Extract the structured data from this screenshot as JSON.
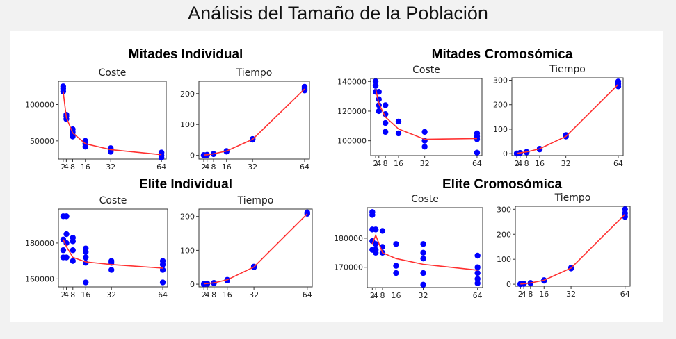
{
  "title": "Análisis del Tamaño de la Población",
  "colors": {
    "line": "#ff3030",
    "point": "#0000ff"
  },
  "groups": [
    {
      "title": "Mitades Individual"
    },
    {
      "title": "Mitades Cromosómica"
    },
    {
      "title": "Elite Individual"
    },
    {
      "title": "Elite Cromosómica"
    }
  ],
  "chart_data": [
    {
      "type": "line",
      "group": 0,
      "title": "Coste",
      "x_ticks": [
        2,
        4,
        8,
        16,
        32,
        64
      ],
      "x_tick_labels": [
        "2",
        "4",
        "8",
        "16",
        "32",
        "64"
      ],
      "xlim": [
        -1,
        67
      ],
      "ylim": [
        25000,
        132000
      ],
      "y_ticks": [
        50000,
        100000
      ],
      "y_tick_labels": [
        "50000",
        "100000"
      ],
      "line": {
        "x": [
          2,
          4,
          8,
          16,
          32,
          64
        ],
        "y": [
          118000,
          82000,
          61000,
          46000,
          38000,
          31000
        ]
      },
      "points": [
        [
          2,
          125000
        ],
        [
          2,
          122000
        ],
        [
          2,
          118000
        ],
        [
          4,
          86000
        ],
        [
          4,
          84000
        ],
        [
          4,
          80000
        ],
        [
          8,
          66000
        ],
        [
          8,
          62000
        ],
        [
          8,
          58000
        ],
        [
          8,
          56000
        ],
        [
          16,
          50000
        ],
        [
          16,
          46000
        ],
        [
          16,
          42000
        ],
        [
          32,
          40000
        ],
        [
          32,
          37000
        ],
        [
          32,
          35000
        ],
        [
          64,
          34000
        ],
        [
          64,
          30000
        ],
        [
          64,
          27000
        ]
      ]
    },
    {
      "type": "line",
      "group": 0,
      "title": "Tiempo",
      "x_ticks": [
        2,
        4,
        8,
        16,
        32,
        64
      ],
      "x_tick_labels": [
        "2",
        "4",
        "8",
        "16",
        "32",
        "64"
      ],
      "xlim": [
        -1,
        67
      ],
      "ylim": [
        -12,
        240
      ],
      "y_ticks": [
        0,
        100,
        200
      ],
      "y_tick_labels": [
        "0",
        "100",
        "200"
      ],
      "line": {
        "x": [
          2,
          4,
          8,
          16,
          32,
          64
        ],
        "y": [
          1,
          2,
          5,
          14,
          52,
          215
        ]
      },
      "points": [
        [
          2,
          1
        ],
        [
          2,
          0
        ],
        [
          4,
          2
        ],
        [
          4,
          1
        ],
        [
          8,
          5
        ],
        [
          8,
          4
        ],
        [
          16,
          14
        ],
        [
          16,
          12
        ],
        [
          32,
          53
        ],
        [
          32,
          51
        ],
        [
          64,
          222
        ],
        [
          64,
          215
        ],
        [
          64,
          210
        ]
      ]
    },
    {
      "type": "line",
      "group": 1,
      "title": "Coste",
      "x_ticks": [
        2,
        4,
        8,
        16,
        32,
        64
      ],
      "x_tick_labels": [
        "2",
        "4",
        "8",
        "16",
        "32",
        "64"
      ],
      "xlim": [
        -1,
        67
      ],
      "ylim": [
        90000,
        142000
      ],
      "y_ticks": [
        100000,
        120000,
        140000
      ],
      "y_tick_labels": [
        "100000",
        "120000",
        "140000"
      ],
      "line": {
        "x": [
          2,
          4,
          8,
          16,
          32,
          64
        ],
        "y": [
          135000,
          125000,
          116000,
          108000,
          101000,
          101500
        ]
      },
      "points": [
        [
          2,
          140000
        ],
        [
          2,
          137000
        ],
        [
          2,
          133000
        ],
        [
          4,
          133000
        ],
        [
          4,
          128000
        ],
        [
          4,
          124000
        ],
        [
          4,
          120000
        ],
        [
          8,
          124000
        ],
        [
          8,
          118000
        ],
        [
          8,
          112000
        ],
        [
          8,
          106000
        ],
        [
          16,
          113000
        ],
        [
          16,
          105000
        ],
        [
          32,
          106000
        ],
        [
          32,
          100000
        ],
        [
          32,
          96000
        ],
        [
          64,
          105000
        ],
        [
          64,
          103000
        ],
        [
          64,
          101000
        ],
        [
          64,
          92000
        ]
      ]
    },
    {
      "type": "line",
      "group": 1,
      "title": "Tiempo",
      "x_ticks": [
        2,
        4,
        8,
        16,
        32,
        64
      ],
      "x_tick_labels": [
        "2",
        "4",
        "8",
        "16",
        "32",
        "64"
      ],
      "xlim": [
        -1,
        67
      ],
      "ylim": [
        -8,
        310
      ],
      "y_ticks": [
        0,
        100,
        200,
        300
      ],
      "y_tick_labels": [
        "0",
        "100",
        "200",
        "300"
      ],
      "line": {
        "x": [
          2,
          4,
          8,
          16,
          32,
          64
        ],
        "y": [
          1,
          3,
          7,
          20,
          70,
          283
        ]
      },
      "points": [
        [
          2,
          1
        ],
        [
          2,
          0
        ],
        [
          4,
          3
        ],
        [
          4,
          2
        ],
        [
          8,
          7
        ],
        [
          8,
          5
        ],
        [
          16,
          20
        ],
        [
          16,
          17
        ],
        [
          32,
          76
        ],
        [
          32,
          70
        ],
        [
          64,
          295
        ],
        [
          64,
          285
        ],
        [
          64,
          275
        ]
      ]
    },
    {
      "type": "line",
      "group": 2,
      "title": "Coste",
      "x_ticks": [
        2,
        4,
        8,
        16,
        32,
        64
      ],
      "x_tick_labels": [
        "2",
        "4",
        "8",
        "16",
        "32",
        "64"
      ],
      "xlim": [
        -1,
        67
      ],
      "ylim": [
        155500,
        199000
      ],
      "y_ticks": [
        160000,
        180000
      ],
      "y_tick_labels": [
        "160000",
        "180000"
      ],
      "line": {
        "x": [
          2,
          4,
          8,
          16,
          32,
          64
        ],
        "y": [
          182000,
          178000,
          172000,
          169500,
          168000,
          166000
        ]
      },
      "points": [
        [
          2,
          195000
        ],
        [
          2,
          182000
        ],
        [
          2,
          176000
        ],
        [
          2,
          172000
        ],
        [
          4,
          195000
        ],
        [
          4,
          185000
        ],
        [
          4,
          180000
        ],
        [
          4,
          172000
        ],
        [
          8,
          183000
        ],
        [
          8,
          181000
        ],
        [
          8,
          176000
        ],
        [
          8,
          170000
        ],
        [
          16,
          177000
        ],
        [
          16,
          175000
        ],
        [
          16,
          172000
        ],
        [
          16,
          169000
        ],
        [
          16,
          158000
        ],
        [
          32,
          170000
        ],
        [
          32,
          169000
        ],
        [
          32,
          165000
        ],
        [
          64,
          170000
        ],
        [
          64,
          168000
        ],
        [
          64,
          165000
        ],
        [
          64,
          158000
        ]
      ]
    },
    {
      "type": "line",
      "group": 2,
      "title": "Tiempo",
      "x_ticks": [
        2,
        4,
        8,
        16,
        32,
        64
      ],
      "x_tick_labels": [
        "2",
        "4",
        "8",
        "16",
        "32",
        "64"
      ],
      "xlim": [
        -1,
        67
      ],
      "ylim": [
        -8,
        222
      ],
      "y_ticks": [
        0,
        100,
        200
      ],
      "y_tick_labels": [
        "0",
        "100",
        "200"
      ],
      "line": {
        "x": [
          2,
          4,
          8,
          16,
          32,
          64
        ],
        "y": [
          1,
          2,
          4,
          13,
          51,
          208
        ]
      },
      "points": [
        [
          2,
          1
        ],
        [
          2,
          0
        ],
        [
          4,
          2
        ],
        [
          4,
          1
        ],
        [
          8,
          4
        ],
        [
          8,
          3
        ],
        [
          16,
          13
        ],
        [
          16,
          11
        ],
        [
          32,
          52
        ],
        [
          32,
          50
        ],
        [
          64,
          212
        ],
        [
          64,
          208
        ]
      ]
    },
    {
      "type": "line",
      "group": 3,
      "title": "Coste",
      "x_ticks": [
        2,
        4,
        8,
        16,
        32,
        64
      ],
      "x_tick_labels": [
        "2",
        "4",
        "8",
        "16",
        "32",
        "64"
      ],
      "xlim": [
        -1,
        67
      ],
      "ylim": [
        163000,
        190500
      ],
      "y_ticks": [
        170000,
        180000
      ],
      "y_tick_labels": [
        "170000",
        "180000"
      ],
      "line": {
        "x": [
          2,
          4,
          8,
          16,
          32,
          64
        ],
        "y": [
          178000,
          181000,
          175000,
          173000,
          171000,
          169000
        ]
      },
      "points": [
        [
          2,
          189000
        ],
        [
          2,
          188000
        ],
        [
          2,
          183000
        ],
        [
          2,
          179000
        ],
        [
          2,
          176000
        ],
        [
          4,
          183000
        ],
        [
          4,
          178000
        ],
        [
          4,
          176000
        ],
        [
          4,
          175000
        ],
        [
          8,
          182500
        ],
        [
          8,
          177000
        ],
        [
          8,
          175000
        ],
        [
          16,
          178000
        ],
        [
          16,
          170500
        ],
        [
          16,
          168000
        ],
        [
          32,
          178000
        ],
        [
          32,
          175000
        ],
        [
          32,
          173000
        ],
        [
          32,
          168000
        ],
        [
          32,
          164000
        ],
        [
          64,
          174000
        ],
        [
          64,
          170000
        ],
        [
          64,
          168000
        ],
        [
          64,
          166000
        ],
        [
          64,
          164500
        ]
      ]
    },
    {
      "type": "line",
      "group": 3,
      "title": "Tiempo",
      "x_ticks": [
        2,
        4,
        8,
        16,
        32,
        64
      ],
      "x_tick_labels": [
        "2",
        "4",
        "8",
        "16",
        "32",
        "64"
      ],
      "xlim": [
        -1,
        67
      ],
      "ylim": [
        -8,
        312
      ],
      "y_ticks": [
        0,
        100,
        200,
        300
      ],
      "y_tick_labels": [
        "0",
        "100",
        "200",
        "300"
      ],
      "line": {
        "x": [
          2,
          4,
          8,
          16,
          32,
          64
        ],
        "y": [
          1,
          2,
          5,
          16,
          65,
          280
        ]
      },
      "points": [
        [
          2,
          1
        ],
        [
          2,
          0
        ],
        [
          4,
          2
        ],
        [
          4,
          1
        ],
        [
          8,
          5
        ],
        [
          8,
          4
        ],
        [
          16,
          16
        ],
        [
          16,
          14
        ],
        [
          32,
          66
        ],
        [
          32,
          63
        ],
        [
          64,
          300
        ],
        [
          64,
          285
        ],
        [
          64,
          270
        ]
      ]
    }
  ]
}
